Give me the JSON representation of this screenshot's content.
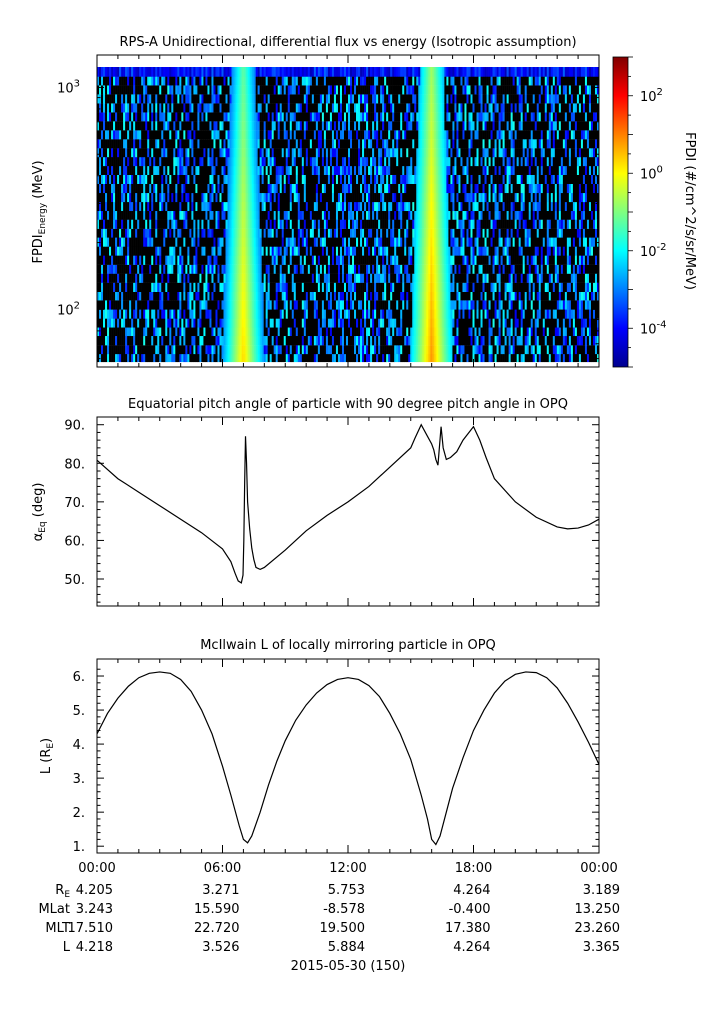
{
  "panels": [
    {
      "title": "RPS-A Unidirectional, differential flux vs energy (Isotropic assumption)",
      "ylabel_main": "FPDI",
      "ylabel_sub": "Energy",
      "ylabel_unit": " (MeV)",
      "y_ticks": [
        {
          "base": "10",
          "exp": "3"
        },
        {
          "base": "10",
          "exp": "2"
        }
      ],
      "colorbar": {
        "label": "FPDI (#/cm^2/s/sr/MeV)",
        "ticks": [
          {
            "base": "10",
            "exp": "2"
          },
          {
            "base": "10",
            "exp": "0"
          },
          {
            "base": "10",
            "exp": "-2"
          },
          {
            "base": "10",
            "exp": "-4"
          }
        ]
      }
    },
    {
      "title": "Equatorial pitch angle of particle with 90 degree pitch angle in OPQ",
      "ylabel_main": "α",
      "ylabel_sub": "Eq",
      "ylabel_unit": " (deg)",
      "y_ticks": [
        "90.",
        "80.",
        "70.",
        "60.",
        "50."
      ]
    },
    {
      "title": "McIlwain L of locally mirroring particle in OPQ",
      "ylabel": "L (R",
      "ylabel_sub": "E",
      "ylabel_close": ")",
      "y_ticks": [
        "6.",
        "5.",
        "4.",
        "3.",
        "2.",
        "1."
      ]
    }
  ],
  "x_ticks": [
    "00:00",
    "06:00",
    "12:00",
    "18:00",
    "00:00"
  ],
  "ephemeris": {
    "rows": [
      {
        "label": "R",
        "label_sub": "E",
        "values": [
          "4.205",
          "3.271",
          "5.753",
          "4.264",
          "3.189"
        ]
      },
      {
        "label": "MLat",
        "label_sub": "",
        "values": [
          "3.243",
          "15.590",
          "-8.578",
          "-0.400",
          "13.250"
        ]
      },
      {
        "label": "MLT",
        "label_sub": "",
        "values": [
          "17.510",
          "22.720",
          "19.500",
          "17.380",
          "23.260"
        ]
      },
      {
        "label": "L",
        "label_sub": "",
        "values": [
          "4.218",
          "3.526",
          "5.884",
          "4.264",
          "3.365"
        ]
      }
    ]
  },
  "date_label": "2015-05-30 (150)",
  "chart_data": [
    {
      "type": "heatmap",
      "title": "RPS-A Unidirectional, differential flux vs energy (Isotropic assumption)",
      "xlabel": "",
      "ylabel": "FPDI_Energy (MeV)",
      "x_range_hours": [
        0,
        24
      ],
      "ylim": [
        55,
        1400
      ],
      "y_scale": "log",
      "colorbar_range": [
        -5,
        3
      ],
      "colorbar_scale": "log",
      "colorbar_label": "FPDI (#/cm^2/s/sr/MeV)",
      "energy_bins": [
        58,
        63,
        69,
        76,
        83,
        91,
        100,
        110,
        120,
        132,
        145,
        159,
        175,
        192,
        211,
        231,
        254,
        278,
        305,
        335,
        368,
        404,
        443,
        486,
        533,
        585,
        642,
        705,
        773,
        849,
        932,
        1023,
        1120,
        1240,
        1340
      ],
      "belt_crossings": [
        {
          "center_hour": 7.0,
          "peak_log_flux": 0.3
        },
        {
          "center_hour": 16.0,
          "peak_log_flux": 0.8
        }
      ],
      "background": "sparse noise near 10^-5 to 10^-2, black where no data"
    },
    {
      "type": "line",
      "title": "Equatorial pitch angle of particle with 90 degree pitch angle in OPQ",
      "xlabel": "",
      "ylabel": "α_Eq (deg)",
      "ylim": [
        43,
        92
      ],
      "x": [
        0,
        1,
        2,
        3,
        4,
        5,
        6,
        6.4,
        6.6,
        6.75,
        6.9,
        6.98,
        7.02,
        7.06,
        7.1,
        7.15,
        7.2,
        7.3,
        7.4,
        7.5,
        7.6,
        7.8,
        8,
        9,
        10,
        11,
        12,
        13,
        14,
        15,
        15.2,
        15.5,
        15.8,
        16.0,
        16.1,
        16.2,
        16.3,
        16.45,
        16.55,
        16.7,
        16.9,
        17.2,
        17.5,
        18.0,
        18.3,
        18.6,
        19,
        20,
        21,
        22,
        22.5,
        23,
        23.5,
        24
      ],
      "y": [
        80.8,
        76,
        72.5,
        69,
        65.5,
        62,
        57.8,
        54.5,
        51.5,
        49.5,
        49.0,
        51.0,
        60.0,
        75.0,
        87.0,
        80.0,
        70.0,
        63.0,
        58.0,
        55.0,
        53.0,
        52.5,
        53.0,
        57.5,
        62.5,
        66.5,
        70.0,
        74.0,
        79.0,
        84.0,
        86.5,
        90.0,
        87.0,
        85.0,
        83.5,
        81.0,
        79.5,
        89.5,
        84.0,
        81.0,
        81.5,
        83.0,
        86.0,
        89.5,
        86.0,
        81.5,
        76.0,
        70.0,
        66.0,
        63.5,
        63.0,
        63.2,
        64.0,
        65.5
      ]
    },
    {
      "type": "line",
      "title": "McIlwain L of locally mirroring particle in OPQ",
      "xlabel": "",
      "ylabel": "L (R_E)",
      "ylim": [
        0.8,
        6.5
      ],
      "x": [
        0,
        0.5,
        1,
        1.5,
        2,
        2.5,
        3,
        3.5,
        4,
        4.5,
        5,
        5.5,
        6,
        6.4,
        6.8,
        7.0,
        7.2,
        7.4,
        7.8,
        8.2,
        8.6,
        9,
        9.5,
        10,
        10.5,
        11,
        11.5,
        12,
        12.5,
        13,
        13.5,
        14,
        14.5,
        15,
        15.5,
        15.8,
        16.0,
        16.2,
        16.4,
        16.7,
        17,
        17.5,
        18,
        18.5,
        19,
        19.5,
        20,
        20.5,
        21,
        21.5,
        22,
        22.5,
        23,
        23.5,
        24
      ],
      "y": [
        4.3,
        4.9,
        5.35,
        5.7,
        5.95,
        6.08,
        6.12,
        6.08,
        5.9,
        5.55,
        5.0,
        4.3,
        3.35,
        2.5,
        1.6,
        1.2,
        1.1,
        1.3,
        2.0,
        2.8,
        3.5,
        4.1,
        4.7,
        5.15,
        5.5,
        5.75,
        5.9,
        5.95,
        5.9,
        5.72,
        5.4,
        4.9,
        4.3,
        3.55,
        2.5,
        1.8,
        1.2,
        1.05,
        1.3,
        2.0,
        2.7,
        3.6,
        4.4,
        5.0,
        5.5,
        5.85,
        6.05,
        6.12,
        6.1,
        5.95,
        5.65,
        5.2,
        4.65,
        4.05,
        3.4
      ]
    }
  ]
}
